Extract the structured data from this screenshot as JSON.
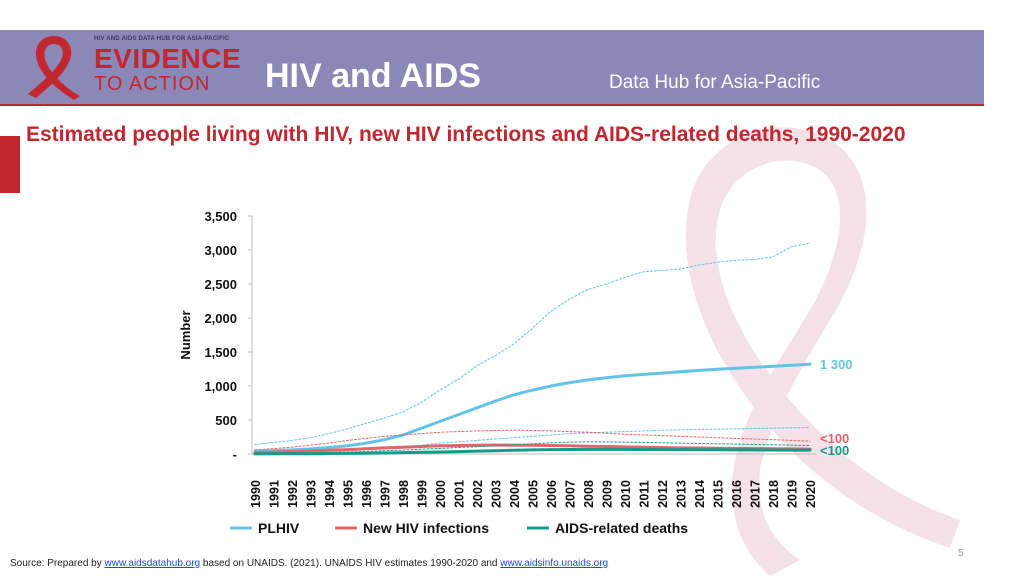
{
  "header": {
    "logo_top": "HIV AND AIDS DATA HUB FOR ASIA-PACIFIC",
    "logo_main": "EVIDENCE",
    "logo_sub": "TO ACTION",
    "title": "HIV and AIDS",
    "subtitle": "Data Hub for Asia-Pacific"
  },
  "footer": {
    "prefix": "Source: Prepared by ",
    "link1": "www.aidsdatahub.org",
    "middle": "  based on UNAIDS. (2021). UNAIDS HIV estimates 1990-2020 and ",
    "link2": "www.aidsinfo.unaids.org"
  },
  "page_number": "5",
  "colors": {
    "plhiv": "#63c3e8",
    "new": "#e0666a",
    "deaths": "#149b8a",
    "accent": "#c2262e",
    "banner": "#8b87b6"
  },
  "chart_data": {
    "type": "line",
    "title": "Estimated people living with HIV, new HIV infections and AIDS-related deaths, 1990-2020",
    "xlabel": "",
    "ylabel": "Number",
    "ylim": [
      0,
      3500
    ],
    "yticks": [
      {
        "value": 0,
        "label": "-"
      },
      {
        "value": 500,
        "label": "500"
      },
      {
        "value": 1000,
        "label": "1,000"
      },
      {
        "value": 1500,
        "label": "1,500"
      },
      {
        "value": 2000,
        "label": "2,000"
      },
      {
        "value": 2500,
        "label": "2,500"
      },
      {
        "value": 3000,
        "label": "3,000"
      },
      {
        "value": 3500,
        "label": "3,500"
      }
    ],
    "categories": [
      "1990",
      "1991",
      "1992",
      "1993",
      "1994",
      "1995",
      "1996",
      "1997",
      "1998",
      "1999",
      "2000",
      "2001",
      "2002",
      "2003",
      "2004",
      "2005",
      "2006",
      "2007",
      "2008",
      "2009",
      "2010",
      "2011",
      "2012",
      "2013",
      "2014",
      "2015",
      "2016",
      "2017",
      "2018",
      "2019",
      "2020"
    ],
    "series": [
      {
        "name": "PLHIV",
        "key": "plhiv",
        "role": "estimate",
        "values": [
          40,
          50,
          60,
          75,
          95,
          120,
          160,
          210,
          280,
          380,
          480,
          580,
          680,
          780,
          870,
          940,
          1000,
          1050,
          1090,
          1120,
          1150,
          1170,
          1190,
          1210,
          1230,
          1245,
          1260,
          1275,
          1290,
          1305,
          1320
        ],
        "end_label": "1 300"
      },
      {
        "name": "PLHIV upper",
        "key": "plhiv",
        "role": "bound",
        "values": [
          140,
          170,
          200,
          240,
          300,
          370,
          450,
          530,
          620,
          760,
          940,
          1100,
          1300,
          1450,
          1620,
          1850,
          2100,
          2280,
          2420,
          2500,
          2600,
          2680,
          2700,
          2720,
          2780,
          2820,
          2850,
          2860,
          2900,
          3050,
          3100
        ]
      },
      {
        "name": "PLHIV lower",
        "key": "plhiv",
        "role": "bound",
        "values": [
          10,
          15,
          20,
          30,
          40,
          55,
          70,
          90,
          110,
          130,
          160,
          180,
          200,
          220,
          240,
          260,
          280,
          300,
          310,
          320,
          330,
          340,
          350,
          355,
          360,
          365,
          370,
          375,
          380,
          385,
          390
        ]
      },
      {
        "name": "New HIV infections",
        "key": "new",
        "role": "estimate",
        "values": [
          20,
          28,
          35,
          45,
          55,
          65,
          78,
          90,
          100,
          110,
          120,
          125,
          130,
          132,
          130,
          128,
          125,
          120,
          115,
          110,
          105,
          100,
          95,
          90,
          88,
          85,
          82,
          80,
          78,
          75,
          72
        ],
        "end_label": "<100"
      },
      {
        "name": "New HIV infections upper",
        "key": "new",
        "role": "bound",
        "values": [
          60,
          80,
          100,
          130,
          160,
          200,
          230,
          260,
          280,
          300,
          320,
          330,
          340,
          345,
          350,
          345,
          340,
          330,
          320,
          305,
          290,
          280,
          270,
          260,
          250,
          240,
          230,
          220,
          210,
          200,
          190
        ]
      },
      {
        "name": "AIDS-related deaths",
        "key": "deaths",
        "role": "estimate",
        "values": [
          2,
          3,
          4,
          5,
          7,
          9,
          12,
          15,
          20,
          25,
          30,
          36,
          42,
          48,
          55,
          60,
          64,
          66,
          68,
          68,
          67,
          66,
          65,
          64,
          63,
          62,
          61,
          60,
          59,
          58,
          57
        ],
        "end_label": "<100"
      },
      {
        "name": "AIDS-related deaths upper",
        "key": "deaths",
        "role": "bound",
        "values": [
          8,
          10,
          14,
          18,
          24,
          30,
          38,
          48,
          58,
          70,
          82,
          95,
          108,
          120,
          135,
          150,
          165,
          175,
          180,
          178,
          175,
          170,
          165,
          160,
          155,
          150,
          145,
          140,
          135,
          130,
          125
        ]
      }
    ],
    "legend": [
      {
        "name": "PLHIV",
        "key": "plhiv"
      },
      {
        "name": "New HIV infections",
        "key": "new"
      },
      {
        "name": "AIDS-related deaths",
        "key": "deaths"
      }
    ],
    "legend_position": "bottom"
  }
}
